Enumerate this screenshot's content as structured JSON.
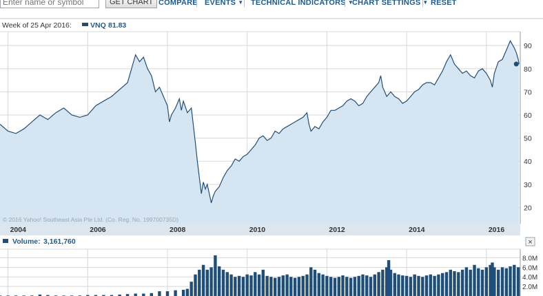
{
  "toolbar": {
    "symbol_placeholder": "Enter name or symbol",
    "get_chart_label": "GET CHART",
    "compare_label": "COMPARE",
    "events_label": "EVENTS",
    "technical_indicators_label": "TECHNICAL INDICATORS",
    "chart_settings_label": "CHART SETTINGS",
    "reset_label": "RESET"
  },
  "price_panel": {
    "header_date": "Week of 25 Apr 2016:",
    "series_symbol": "VNQ",
    "series_value": "81.83",
    "copyright": "© 2016 Yahoo! Southeast Asia Pte Ltd. (Co. Reg. No. 199700735D)"
  },
  "volume_panel": {
    "label": "Volume:",
    "value": "3,161,760",
    "close_label": "×"
  },
  "colors": {
    "line": "#1f4e79",
    "fill": "#d5e6f2",
    "volume": "#1f4e79",
    "grid": "#d8d8d8",
    "accent": "#1d5b94"
  },
  "chart_data": [
    {
      "type": "area",
      "series": [
        {
          "name": "VNQ",
          "values": [
            [
              2003.8,
              56
            ],
            [
              2004.0,
              53
            ],
            [
              2004.2,
              52
            ],
            [
              2004.4,
              54
            ],
            [
              2004.6,
              57
            ],
            [
              2004.8,
              60
            ],
            [
              2005.0,
              58
            ],
            [
              2005.2,
              61
            ],
            [
              2005.4,
              63
            ],
            [
              2005.6,
              60
            ],
            [
              2005.8,
              59
            ],
            [
              2006.0,
              60
            ],
            [
              2006.2,
              64
            ],
            [
              2006.4,
              66
            ],
            [
              2006.6,
              68
            ],
            [
              2006.8,
              71
            ],
            [
              2007.0,
              74
            ],
            [
              2007.1,
              80
            ],
            [
              2007.2,
              86
            ],
            [
              2007.3,
              83
            ],
            [
              2007.4,
              85
            ],
            [
              2007.5,
              80
            ],
            [
              2007.6,
              77
            ],
            [
              2007.7,
              70
            ],
            [
              2007.8,
              72
            ],
            [
              2007.9,
              68
            ],
            [
              2008.0,
              64
            ],
            [
              2008.05,
              57
            ],
            [
              2008.1,
              60
            ],
            [
              2008.2,
              63
            ],
            [
              2008.3,
              67
            ],
            [
              2008.35,
              62
            ],
            [
              2008.4,
              66
            ],
            [
              2008.5,
              61
            ],
            [
              2008.6,
              63
            ],
            [
              2008.7,
              48
            ],
            [
              2008.75,
              40
            ],
            [
              2008.8,
              33
            ],
            [
              2008.85,
              26
            ],
            [
              2008.9,
              31
            ],
            [
              2008.95,
              28
            ],
            [
              2009.0,
              30
            ],
            [
              2009.05,
              26
            ],
            [
              2009.1,
              22
            ],
            [
              2009.15,
              25
            ],
            [
              2009.2,
              27
            ],
            [
              2009.3,
              29
            ],
            [
              2009.4,
              33
            ],
            [
              2009.5,
              36
            ],
            [
              2009.6,
              38
            ],
            [
              2009.7,
              41
            ],
            [
              2009.8,
              40
            ],
            [
              2009.9,
              42
            ],
            [
              2010.0,
              43
            ],
            [
              2010.1,
              45
            ],
            [
              2010.2,
              47
            ],
            [
              2010.3,
              50
            ],
            [
              2010.4,
              51
            ],
            [
              2010.5,
              49
            ],
            [
              2010.6,
              50
            ],
            [
              2010.7,
              53
            ],
            [
              2010.8,
              52
            ],
            [
              2010.9,
              54
            ],
            [
              2011.0,
              55
            ],
            [
              2011.1,
              56
            ],
            [
              2011.2,
              57
            ],
            [
              2011.3,
              58
            ],
            [
              2011.4,
              59
            ],
            [
              2011.5,
              61
            ],
            [
              2011.55,
              56
            ],
            [
              2011.6,
              53
            ],
            [
              2011.7,
              55
            ],
            [
              2011.8,
              54
            ],
            [
              2011.9,
              57
            ],
            [
              2012.0,
              59
            ],
            [
              2012.1,
              62
            ],
            [
              2012.2,
              62
            ],
            [
              2012.3,
              63
            ],
            [
              2012.4,
              64
            ],
            [
              2012.5,
              66
            ],
            [
              2012.6,
              67
            ],
            [
              2012.7,
              66
            ],
            [
              2012.8,
              64
            ],
            [
              2012.9,
              65
            ],
            [
              2013.0,
              68
            ],
            [
              2013.1,
              70
            ],
            [
              2013.2,
              72
            ],
            [
              2013.3,
              74
            ],
            [
              2013.35,
              77
            ],
            [
              2013.4,
              72
            ],
            [
              2013.5,
              68
            ],
            [
              2013.6,
              70
            ],
            [
              2013.7,
              68
            ],
            [
              2013.8,
              67
            ],
            [
              2013.9,
              65
            ],
            [
              2014.0,
              66
            ],
            [
              2014.1,
              68
            ],
            [
              2014.2,
              70
            ],
            [
              2014.3,
              71
            ],
            [
              2014.4,
              73
            ],
            [
              2014.5,
              74
            ],
            [
              2014.6,
              74
            ],
            [
              2014.7,
              73
            ],
            [
              2014.8,
              76
            ],
            [
              2014.9,
              79
            ],
            [
              2015.0,
              83
            ],
            [
              2015.1,
              86
            ],
            [
              2015.2,
              82
            ],
            [
              2015.3,
              80
            ],
            [
              2015.4,
              78
            ],
            [
              2015.5,
              79
            ],
            [
              2015.6,
              77
            ],
            [
              2015.7,
              76
            ],
            [
              2015.8,
              79
            ],
            [
              2015.9,
              80
            ],
            [
              2016.0,
              78
            ],
            [
              2016.1,
              75
            ],
            [
              2016.15,
              72
            ],
            [
              2016.2,
              78
            ],
            [
              2016.3,
              83
            ],
            [
              2016.4,
              84
            ],
            [
              2016.5,
              88
            ],
            [
              2016.6,
              92
            ],
            [
              2016.7,
              89
            ],
            [
              2016.75,
              87
            ],
            [
              2016.8,
              84
            ],
            [
              2016.82,
              82
            ]
          ]
        }
      ],
      "x_ticks": [
        "2004",
        "2006",
        "2008",
        "2010",
        "2012",
        "2014",
        "2016"
      ],
      "y_ticks": [
        "20",
        "30",
        "40",
        "50",
        "60",
        "70",
        "80",
        "90"
      ],
      "xlim": [
        2003.8,
        2016.85
      ],
      "ylim": [
        13,
        96
      ],
      "grid": true,
      "markers": [
        [
          2016.75,
          82
        ]
      ]
    },
    {
      "type": "bar",
      "title": "Volume",
      "y_ticks": [
        "2.0M",
        "4.0M",
        "6.0M",
        "8.0M"
      ],
      "ylim": [
        0,
        9.5
      ],
      "series": [
        {
          "name": "Volume",
          "values": [
            [
              2003.8,
              0.1
            ],
            [
              2004.0,
              0.1
            ],
            [
              2004.2,
              0.1
            ],
            [
              2004.4,
              0.1
            ],
            [
              2004.6,
              0.1
            ],
            [
              2004.8,
              0.3
            ],
            [
              2005.0,
              0.2
            ],
            [
              2005.2,
              0.1
            ],
            [
              2005.4,
              0.1
            ],
            [
              2005.6,
              0.1
            ],
            [
              2005.8,
              0.1
            ],
            [
              2006.0,
              0.2
            ],
            [
              2006.2,
              0.2
            ],
            [
              2006.4,
              0.2
            ],
            [
              2006.6,
              0.2
            ],
            [
              2006.8,
              0.3
            ],
            [
              2007.0,
              0.4
            ],
            [
              2007.2,
              0.5
            ],
            [
              2007.4,
              0.5
            ],
            [
              2007.6,
              0.6
            ],
            [
              2007.8,
              1.0
            ],
            [
              2008.0,
              1.0
            ],
            [
              2008.2,
              1.2
            ],
            [
              2008.4,
              1.3
            ],
            [
              2008.5,
              1.5
            ],
            [
              2008.6,
              3.0
            ],
            [
              2008.7,
              4.5
            ],
            [
              2008.8,
              5.5
            ],
            [
              2008.9,
              6.5
            ],
            [
              2009.0,
              5.5
            ],
            [
              2009.1,
              6.0
            ],
            [
              2009.2,
              8.5
            ],
            [
              2009.3,
              6.2
            ],
            [
              2009.4,
              5.5
            ],
            [
              2009.5,
              5.0
            ],
            [
              2009.6,
              4.5
            ],
            [
              2009.7,
              4.0
            ],
            [
              2009.8,
              4.2
            ],
            [
              2009.9,
              4.0
            ],
            [
              2010.0,
              4.5
            ],
            [
              2010.1,
              4.3
            ],
            [
              2010.2,
              5.0
            ],
            [
              2010.3,
              4.5
            ],
            [
              2010.4,
              5.5
            ],
            [
              2010.5,
              4.2
            ],
            [
              2010.6,
              4.0
            ],
            [
              2010.7,
              3.8
            ],
            [
              2010.8,
              4.0
            ],
            [
              2010.9,
              4.3
            ],
            [
              2011.0,
              4.5
            ],
            [
              2011.1,
              4.0
            ],
            [
              2011.2,
              3.8
            ],
            [
              2011.3,
              4.0
            ],
            [
              2011.4,
              4.2
            ],
            [
              2011.5,
              4.5
            ],
            [
              2011.6,
              6.0
            ],
            [
              2011.7,
              5.5
            ],
            [
              2011.8,
              4.8
            ],
            [
              2011.9,
              4.5
            ],
            [
              2012.0,
              4.2
            ],
            [
              2012.1,
              4.0
            ],
            [
              2012.2,
              3.8
            ],
            [
              2012.3,
              4.0
            ],
            [
              2012.4,
              4.3
            ],
            [
              2012.5,
              4.0
            ],
            [
              2012.6,
              3.8
            ],
            [
              2012.7,
              4.0
            ],
            [
              2012.8,
              4.2
            ],
            [
              2012.9,
              4.5
            ],
            [
              2013.0,
              4.3
            ],
            [
              2013.1,
              4.0
            ],
            [
              2013.2,
              4.5
            ],
            [
              2013.3,
              5.0
            ],
            [
              2013.4,
              5.5
            ],
            [
              2013.5,
              6.0
            ],
            [
              2013.55,
              7.5
            ],
            [
              2013.6,
              5.5
            ],
            [
              2013.7,
              4.8
            ],
            [
              2013.8,
              4.5
            ],
            [
              2013.9,
              4.3
            ],
            [
              2014.0,
              4.2
            ],
            [
              2014.1,
              4.0
            ],
            [
              2014.2,
              4.5
            ],
            [
              2014.3,
              4.2
            ],
            [
              2014.4,
              4.0
            ],
            [
              2014.5,
              4.3
            ],
            [
              2014.6,
              4.5
            ],
            [
              2014.7,
              4.2
            ],
            [
              2014.8,
              4.5
            ],
            [
              2014.9,
              4.8
            ],
            [
              2015.0,
              5.0
            ],
            [
              2015.1,
              5.5
            ],
            [
              2015.2,
              5.2
            ],
            [
              2015.3,
              5.0
            ],
            [
              2015.4,
              5.5
            ],
            [
              2015.5,
              6.0
            ],
            [
              2015.6,
              5.5
            ],
            [
              2015.7,
              6.5
            ],
            [
              2015.8,
              5.8
            ],
            [
              2015.9,
              5.5
            ],
            [
              2016.0,
              6.0
            ],
            [
              2016.1,
              6.5
            ],
            [
              2016.15,
              7.0
            ],
            [
              2016.2,
              6.0
            ],
            [
              2016.3,
              5.5
            ],
            [
              2016.4,
              6.0
            ],
            [
              2016.5,
              5.8
            ],
            [
              2016.6,
              6.2
            ],
            [
              2016.7,
              6.5
            ],
            [
              2016.8,
              6.0
            ]
          ]
        }
      ]
    }
  ]
}
